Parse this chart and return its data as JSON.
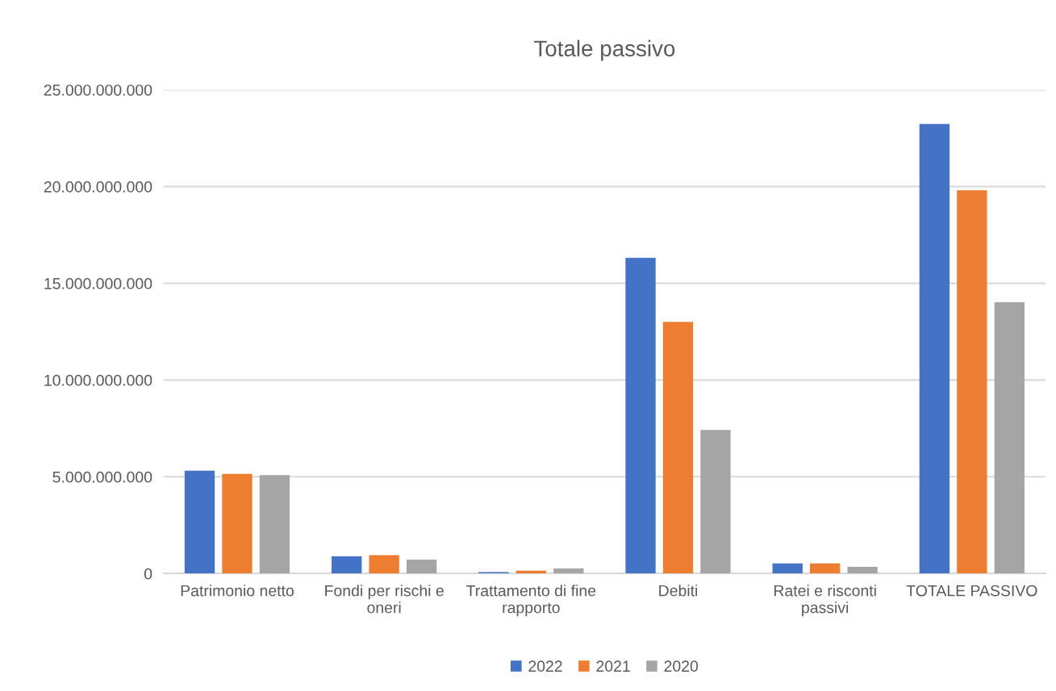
{
  "chart_data": {
    "type": "bar",
    "title": "Totale passivo",
    "categories": [
      "Patrimonio netto",
      "Fondi per rischi e oneri",
      "Trattamento di fine rapporto",
      "Debiti",
      "Ratei e risconti passivi",
      "TOTALE PASSIVO"
    ],
    "series": [
      {
        "name": "2022",
        "color": "#4472c4",
        "values": [
          5320000000,
          890000000,
          80000000,
          16320000000,
          520000000,
          23240000000
        ]
      },
      {
        "name": "2021",
        "color": "#ed7d31",
        "values": [
          5150000000,
          950000000,
          150000000,
          13000000000,
          520000000,
          19810000000
        ]
      },
      {
        "name": "2020",
        "color": "#a5a5a5",
        "values": [
          5090000000,
          720000000,
          260000000,
          7420000000,
          350000000,
          14030000000
        ]
      }
    ],
    "ylim": [
      0,
      25000000000
    ],
    "yticks": [
      0,
      {
        "value": 5000000000,
        "label": "5.000.000.000"
      },
      {
        "value": 10000000000,
        "label": "10.000.000.000"
      },
      {
        "value": 15000000000,
        "label": "15.000.000.000"
      },
      {
        "value": 20000000000,
        "label": "20.000.000.000"
      },
      {
        "value": 25000000000,
        "label": "25.000.000.000"
      }
    ],
    "grid": "y",
    "legend": "bottom"
  }
}
